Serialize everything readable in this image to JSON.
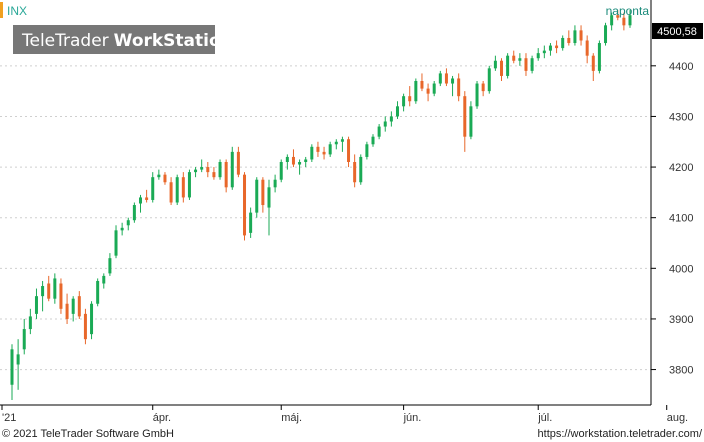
{
  "symbol": "INX",
  "interval": "naponta",
  "watermark": {
    "brand": "TeleTrader",
    "product": "WorkStation"
  },
  "footer": {
    "copyright": "© 2021 TeleTrader Software GmbH",
    "url": "https://workstation.teletrader.com/"
  },
  "last_price_label": "4500,58",
  "colors": {
    "up": "#1aaa55",
    "down": "#e8672a",
    "accent": "#f0a020",
    "symbol_text": "#2aa898",
    "interval_text": "#1a8a7a",
    "grid": "#cfcfcf",
    "watermark_bg": "#777777",
    "last_price_bg": "#000000"
  },
  "chart_data": {
    "type": "candlestick",
    "series_name": "INX",
    "ylim": [
      3730,
      4530
    ],
    "y_ticks": [
      3800,
      3900,
      4000,
      4100,
      4200,
      4300,
      4400
    ],
    "y_tick_labels": [
      "3800",
      "3900",
      "4000",
      "4100",
      "4200",
      "4300",
      "4400"
    ],
    "x_tick_labels": [
      {
        "label": "'21",
        "index": 0
      },
      {
        "label": "ápr.",
        "index": 23
      },
      {
        "label": "máj.",
        "index": 44
      },
      {
        "label": "jún.",
        "index": 64
      },
      {
        "label": "júl.",
        "index": 86
      },
      {
        "label": "aug.",
        "index": 107
      }
    ],
    "grid": true,
    "last_value": 4500.58,
    "candles": [
      {
        "o": 3770,
        "h": 3850,
        "l": 3740,
        "c": 3840
      },
      {
        "o": 3810,
        "h": 3860,
        "l": 3760,
        "c": 3830
      },
      {
        "o": 3840,
        "h": 3900,
        "l": 3830,
        "c": 3880
      },
      {
        "o": 3880,
        "h": 3920,
        "l": 3870,
        "c": 3905
      },
      {
        "o": 3910,
        "h": 3960,
        "l": 3900,
        "c": 3945
      },
      {
        "o": 3945,
        "h": 3975,
        "l": 3915,
        "c": 3965
      },
      {
        "o": 3970,
        "h": 3985,
        "l": 3935,
        "c": 3940
      },
      {
        "o": 3940,
        "h": 3990,
        "l": 3930,
        "c": 3980
      },
      {
        "o": 3970,
        "h": 3980,
        "l": 3910,
        "c": 3920
      },
      {
        "o": 3930,
        "h": 3950,
        "l": 3890,
        "c": 3900
      },
      {
        "o": 3910,
        "h": 3945,
        "l": 3895,
        "c": 3940
      },
      {
        "o": 3945,
        "h": 3955,
        "l": 3900,
        "c": 3905
      },
      {
        "o": 3910,
        "h": 3920,
        "l": 3850,
        "c": 3860
      },
      {
        "o": 3870,
        "h": 3935,
        "l": 3860,
        "c": 3930
      },
      {
        "o": 3930,
        "h": 3980,
        "l": 3925,
        "c": 3975
      },
      {
        "o": 3970,
        "h": 3990,
        "l": 3960,
        "c": 3985
      },
      {
        "o": 3990,
        "h": 4030,
        "l": 3985,
        "c": 4020
      },
      {
        "o": 4025,
        "h": 4085,
        "l": 4020,
        "c": 4075
      },
      {
        "o": 4075,
        "h": 4090,
        "l": 4065,
        "c": 4080
      },
      {
        "o": 4085,
        "h": 4100,
        "l": 4075,
        "c": 4095
      },
      {
        "o": 4095,
        "h": 4130,
        "l": 4090,
        "c": 4125
      },
      {
        "o": 4128,
        "h": 4145,
        "l": 4110,
        "c": 4140
      },
      {
        "o": 4140,
        "h": 4155,
        "l": 4130,
        "c": 4135
      },
      {
        "o": 4135,
        "h": 4190,
        "l": 4130,
        "c": 4180
      },
      {
        "o": 4180,
        "h": 4195,
        "l": 4175,
        "c": 4185
      },
      {
        "o": 4185,
        "h": 4190,
        "l": 4165,
        "c": 4170
      },
      {
        "o": 4170,
        "h": 4180,
        "l": 4125,
        "c": 4130
      },
      {
        "o": 4130,
        "h": 4185,
        "l": 4125,
        "c": 4180
      },
      {
        "o": 4180,
        "h": 4190,
        "l": 4130,
        "c": 4140
      },
      {
        "o": 4140,
        "h": 4195,
        "l": 4135,
        "c": 4190
      },
      {
        "o": 4190,
        "h": 4200,
        "l": 4180,
        "c": 4195
      },
      {
        "o": 4195,
        "h": 4215,
        "l": 4190,
        "c": 4200
      },
      {
        "o": 4200,
        "h": 4210,
        "l": 4180,
        "c": 4190
      },
      {
        "o": 4190,
        "h": 4200,
        "l": 4175,
        "c": 4180
      },
      {
        "o": 4180,
        "h": 4215,
        "l": 4175,
        "c": 4210
      },
      {
        "o": 4210,
        "h": 4215,
        "l": 4150,
        "c": 4160
      },
      {
        "o": 4160,
        "h": 4240,
        "l": 4155,
        "c": 4230
      },
      {
        "o": 4230,
        "h": 4240,
        "l": 4180,
        "c": 4185
      },
      {
        "o": 4185,
        "h": 4190,
        "l": 4055,
        "c": 4065
      },
      {
        "o": 4070,
        "h": 4120,
        "l": 4060,
        "c": 4110
      },
      {
        "o": 4110,
        "h": 4180,
        "l": 4100,
        "c": 4175
      },
      {
        "o": 4175,
        "h": 4180,
        "l": 4110,
        "c": 4125
      },
      {
        "o": 4120,
        "h": 4175,
        "l": 4065,
        "c": 4160
      },
      {
        "o": 4160,
        "h": 4185,
        "l": 4150,
        "c": 4175
      },
      {
        "o": 4175,
        "h": 4215,
        "l": 4170,
        "c": 4210
      },
      {
        "o": 4210,
        "h": 4225,
        "l": 4195,
        "c": 4220
      },
      {
        "o": 4220,
        "h": 4235,
        "l": 4200,
        "c": 4205
      },
      {
        "o": 4205,
        "h": 4215,
        "l": 4185,
        "c": 4210
      },
      {
        "o": 4210,
        "h": 4220,
        "l": 4200,
        "c": 4215
      },
      {
        "o": 4215,
        "h": 4245,
        "l": 4210,
        "c": 4240
      },
      {
        "o": 4240,
        "h": 4250,
        "l": 4220,
        "c": 4230
      },
      {
        "o": 4230,
        "h": 4240,
        "l": 4215,
        "c": 4225
      },
      {
        "o": 4225,
        "h": 4250,
        "l": 4220,
        "c": 4245
      },
      {
        "o": 4245,
        "h": 4255,
        "l": 4235,
        "c": 4250
      },
      {
        "o": 4250,
        "h": 4260,
        "l": 4230,
        "c": 4255
      },
      {
        "o": 4255,
        "h": 4260,
        "l": 4200,
        "c": 4210
      },
      {
        "o": 4210,
        "h": 4225,
        "l": 4160,
        "c": 4170
      },
      {
        "o": 4170,
        "h": 4225,
        "l": 4165,
        "c": 4220
      },
      {
        "o": 4220,
        "h": 4250,
        "l": 4215,
        "c": 4245
      },
      {
        "o": 4245,
        "h": 4265,
        "l": 4240,
        "c": 4260
      },
      {
        "o": 4260,
        "h": 4285,
        "l": 4255,
        "c": 4280
      },
      {
        "o": 4280,
        "h": 4300,
        "l": 4270,
        "c": 4290
      },
      {
        "o": 4290,
        "h": 4310,
        "l": 4280,
        "c": 4300
      },
      {
        "o": 4300,
        "h": 4330,
        "l": 4295,
        "c": 4320
      },
      {
        "o": 4320,
        "h": 4345,
        "l": 4310,
        "c": 4340
      },
      {
        "o": 4340,
        "h": 4360,
        "l": 4320,
        "c": 4330
      },
      {
        "o": 4330,
        "h": 4375,
        "l": 4325,
        "c": 4370
      },
      {
        "o": 4370,
        "h": 4385,
        "l": 4350,
        "c": 4355
      },
      {
        "o": 4355,
        "h": 4365,
        "l": 4330,
        "c": 4345
      },
      {
        "o": 4345,
        "h": 4370,
        "l": 4340,
        "c": 4365
      },
      {
        "o": 4365,
        "h": 4390,
        "l": 4360,
        "c": 4385
      },
      {
        "o": 4385,
        "h": 4395,
        "l": 4360,
        "c": 4365
      },
      {
        "o": 4365,
        "h": 4380,
        "l": 4340,
        "c": 4375
      },
      {
        "o": 4375,
        "h": 4385,
        "l": 4330,
        "c": 4340
      },
      {
        "o": 4340,
        "h": 4350,
        "l": 4230,
        "c": 4260
      },
      {
        "o": 4260,
        "h": 4330,
        "l": 4255,
        "c": 4320
      },
      {
        "o": 4320,
        "h": 4370,
        "l": 4315,
        "c": 4365
      },
      {
        "o": 4365,
        "h": 4370,
        "l": 4340,
        "c": 4350
      },
      {
        "o": 4350,
        "h": 4400,
        "l": 4345,
        "c": 4395
      },
      {
        "o": 4395,
        "h": 4420,
        "l": 4390,
        "c": 4410
      },
      {
        "o": 4410,
        "h": 4415,
        "l": 4370,
        "c": 4380
      },
      {
        "o": 4380,
        "h": 4425,
        "l": 4375,
        "c": 4420
      },
      {
        "o": 4420,
        "h": 4430,
        "l": 4405,
        "c": 4410
      },
      {
        "o": 4410,
        "h": 4425,
        "l": 4400,
        "c": 4415
      },
      {
        "o": 4415,
        "h": 4425,
        "l": 4380,
        "c": 4390
      },
      {
        "o": 4390,
        "h": 4420,
        "l": 4385,
        "c": 4415
      },
      {
        "o": 4415,
        "h": 4435,
        "l": 4410,
        "c": 4425
      },
      {
        "o": 4425,
        "h": 4440,
        "l": 4415,
        "c": 4430
      },
      {
        "o": 4430,
        "h": 4445,
        "l": 4420,
        "c": 4440
      },
      {
        "o": 4440,
        "h": 4450,
        "l": 4425,
        "c": 4435
      },
      {
        "o": 4435,
        "h": 4460,
        "l": 4430,
        "c": 4455
      },
      {
        "o": 4455,
        "h": 4470,
        "l": 4440,
        "c": 4445
      },
      {
        "o": 4445,
        "h": 4480,
        "l": 4440,
        "c": 4470
      },
      {
        "o": 4470,
        "h": 4480,
        "l": 4440,
        "c": 4450
      },
      {
        "o": 4450,
        "h": 4460,
        "l": 4405,
        "c": 4420
      },
      {
        "o": 4420,
        "h": 4425,
        "l": 4370,
        "c": 4390
      },
      {
        "o": 4390,
        "h": 4450,
        "l": 4385,
        "c": 4445
      },
      {
        "o": 4445,
        "h": 4485,
        "l": 4440,
        "c": 4480
      },
      {
        "o": 4480,
        "h": 4505,
        "l": 4470,
        "c": 4500
      },
      {
        "o": 4500,
        "h": 4510,
        "l": 4490,
        "c": 4495
      },
      {
        "o": 4495,
        "h": 4505,
        "l": 4470,
        "c": 4480
      },
      {
        "o": 4480,
        "h": 4510,
        "l": 4475,
        "c": 4500
      }
    ]
  }
}
